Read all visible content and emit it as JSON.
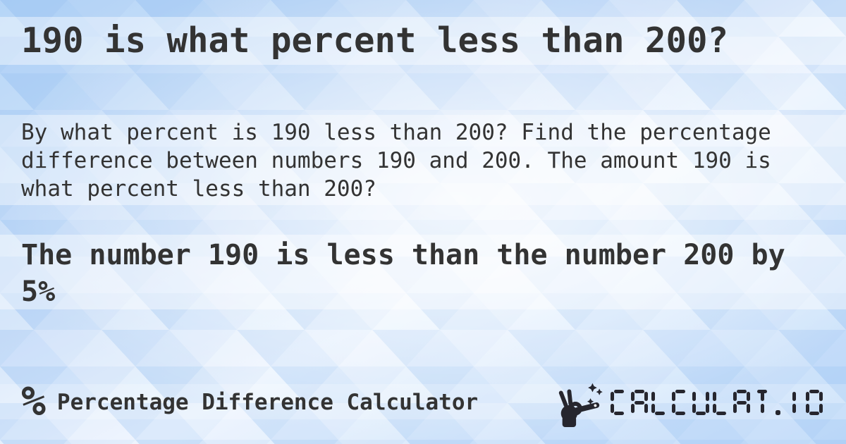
{
  "page": {
    "title": "190 is what percent less than 200?",
    "description": "By what percent is 190 less than 200? Find the percentage difference between numbers 190 and 200. The amount 190 is what percent less than 200?",
    "answer": "The number 190 is less than the number 200 by 5%"
  },
  "footer": {
    "app_icon_glyph": "%",
    "app_name": "Percentage Difference Calculator",
    "brand": "CALCULAT.IO",
    "brand_icon": "magic-wand-hand-icon"
  },
  "colors": {
    "text": "#333333",
    "logo_dark": "#26262e",
    "pattern_blue": "#8ab8ef",
    "background_light": "#f4f9ff"
  }
}
